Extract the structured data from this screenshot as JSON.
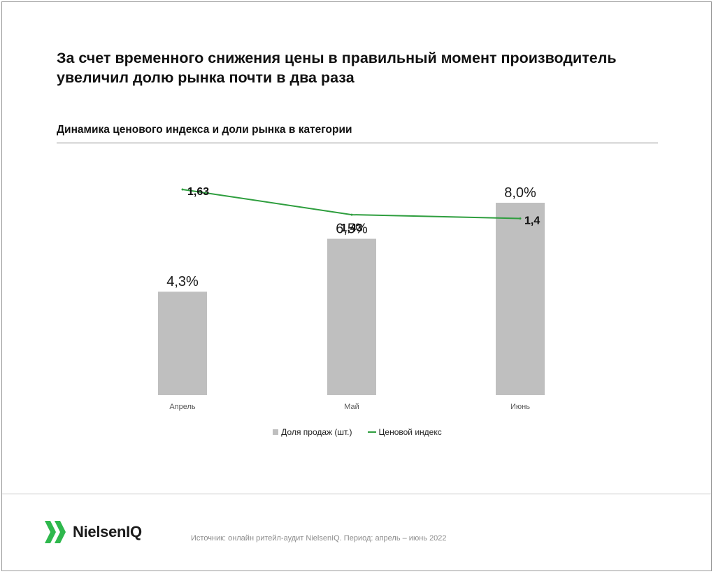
{
  "headline": "За счет временного снижения цены в правильный момент производитель увеличил долю рынка почти в два раза",
  "chart_title": "Динамика ценового индекса и доли рынка в категории",
  "colors": {
    "bar": "#bfbfbf",
    "line": "#2e9e3e",
    "logo_green": "#2fb84d"
  },
  "chart_data": {
    "type": "bar",
    "categories": [
      "Апрель",
      "Май",
      "Июнь"
    ],
    "series": [
      {
        "name": "Доля продаж (шт.)",
        "type": "bar",
        "values": [
          4.3,
          6.5,
          8.0
        ],
        "labels": [
          "4,3%",
          "6,5%",
          "8,0%"
        ]
      },
      {
        "name": "Ценовой индекс",
        "type": "line",
        "values": [
          1.63,
          1.43,
          1.4
        ],
        "labels": [
          "1,63",
          "1,43",
          "1,4"
        ]
      }
    ],
    "ylim_bar": [
      0,
      8.0
    ],
    "ylim_line": [
      0,
      1.63
    ],
    "legend": "bottom",
    "grid": false
  },
  "logo": {
    "brand": "NielsenIQ"
  },
  "source": "Источник: онлайн ритейл-аудит NielsenIQ. Период: апрель – июнь 2022"
}
